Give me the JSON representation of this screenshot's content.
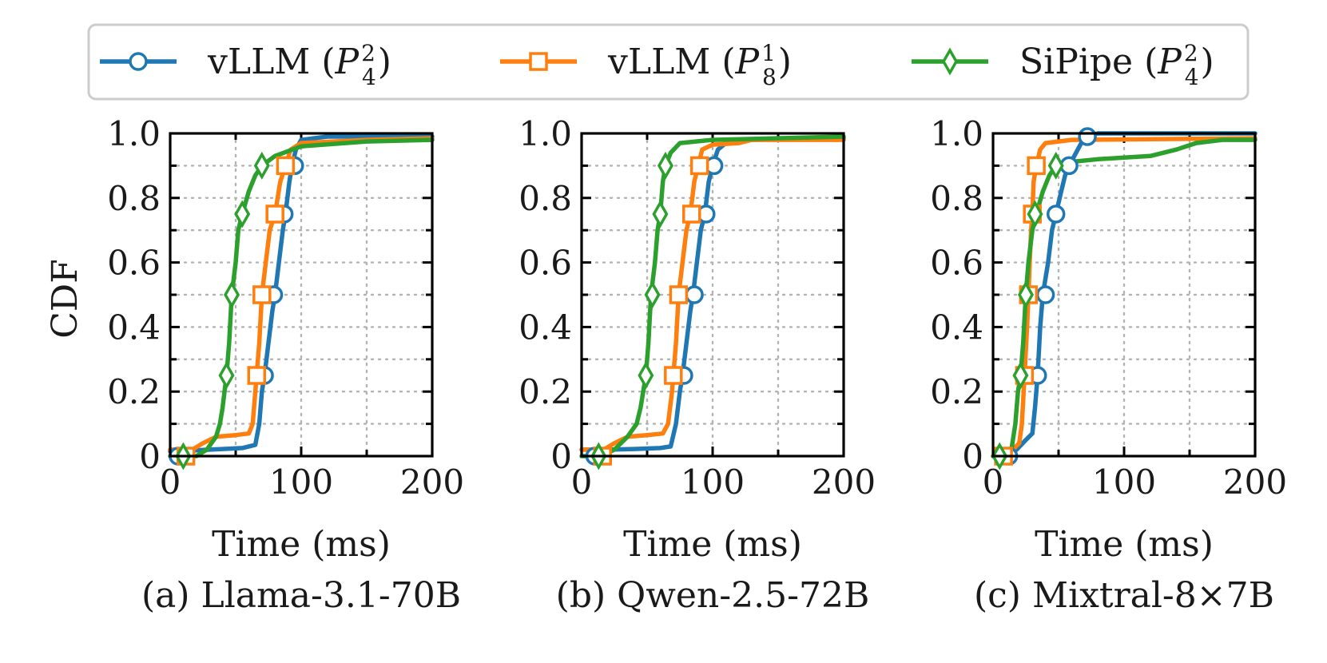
{
  "chart_data": {
    "type": "line",
    "ylabel": "CDF",
    "legend": {
      "position": "top",
      "entries": [
        {
          "name": "vLLM",
          "config": "P",
          "sub": "4",
          "sup": "2",
          "color": "#1f77b4",
          "marker": "circle"
        },
        {
          "name": "vLLM",
          "config": "P",
          "sub": "8",
          "sup": "1",
          "color": "#ff7f0e",
          "marker": "square"
        },
        {
          "name": "SiPipe",
          "config": "P",
          "sub": "4",
          "sup": "2",
          "color": "#2ca02c",
          "marker": "diamond"
        }
      ]
    },
    "xlim": [
      0,
      200
    ],
    "ylim": [
      0,
      1.0
    ],
    "xticks": [
      "0",
      "100",
      "200"
    ],
    "yticks": [
      "0",
      "0.2",
      "0.4",
      "0.6",
      "0.8",
      "1.0"
    ],
    "grid": true,
    "marker_levels": [
      0,
      0.25,
      0.5,
      0.75,
      0.9
    ],
    "panels": [
      {
        "caption": "(a) Llama-3.1-70B",
        "xlabel": "Time (ms)",
        "series": [
          {
            "name": "vLLM (P_4^2)",
            "color": "#1f77b4",
            "points": [
              [
                0,
                0.015
              ],
              [
                10,
                0.016
              ],
              [
                20,
                0.018
              ],
              [
                30,
                0.02
              ],
              [
                40,
                0.022
              ],
              [
                55,
                0.025
              ],
              [
                65,
                0.035
              ],
              [
                68,
                0.1
              ],
              [
                70,
                0.2
              ],
              [
                72,
                0.25
              ],
              [
                75,
                0.35
              ],
              [
                78,
                0.45
              ],
              [
                80,
                0.5
              ],
              [
                83,
                0.6
              ],
              [
                86,
                0.7
              ],
              [
                88,
                0.75
              ],
              [
                91,
                0.85
              ],
              [
                93,
                0.9
              ],
              [
                96,
                0.95
              ],
              [
                100,
                0.98
              ],
              [
                120,
                0.99
              ],
              [
                200,
                0.99
              ]
            ],
            "markers": [
              [
                6,
                0.0
              ],
              [
                72,
                0.25
              ],
              [
                79,
                0.5
              ],
              [
                87,
                0.75
              ],
              [
                95,
                0.9
              ]
            ]
          },
          {
            "name": "vLLM (P_8^1)",
            "color": "#ff7f0e",
            "points": [
              [
                0,
                0.02
              ],
              [
                10,
                0.02
              ],
              [
                15,
                0.015
              ],
              [
                25,
                0.04
              ],
              [
                35,
                0.06
              ],
              [
                50,
                0.065
              ],
              [
                60,
                0.07
              ],
              [
                63,
                0.1
              ],
              [
                65,
                0.2
              ],
              [
                66,
                0.25
              ],
              [
                68,
                0.35
              ],
              [
                70,
                0.5
              ],
              [
                73,
                0.6
              ],
              [
                76,
                0.7
              ],
              [
                80,
                0.75
              ],
              [
                84,
                0.85
              ],
              [
                88,
                0.9
              ],
              [
                92,
                0.95
              ],
              [
                100,
                0.97
              ],
              [
                150,
                0.98
              ],
              [
                200,
                0.985
              ]
            ],
            "markers": [
              [
                12,
                0.0
              ],
              [
                66,
                0.25
              ],
              [
                70,
                0.5
              ],
              [
                80,
                0.75
              ],
              [
                88,
                0.9
              ]
            ]
          },
          {
            "name": "SiPipe (P_4^2)",
            "color": "#2ca02c",
            "points": [
              [
                0,
                0.0
              ],
              [
                20,
                0.0
              ],
              [
                28,
                0.02
              ],
              [
                35,
                0.06
              ],
              [
                38,
                0.1
              ],
              [
                40,
                0.15
              ],
              [
                43,
                0.25
              ],
              [
                45,
                0.35
              ],
              [
                47,
                0.5
              ],
              [
                50,
                0.6
              ],
              [
                52,
                0.7
              ],
              [
                55,
                0.75
              ],
              [
                60,
                0.82
              ],
              [
                65,
                0.87
              ],
              [
                70,
                0.9
              ],
              [
                80,
                0.93
              ],
              [
                100,
                0.96
              ],
              [
                150,
                0.975
              ],
              [
                200,
                0.98
              ]
            ],
            "markers": [
              [
                10,
                0.0
              ],
              [
                43,
                0.25
              ],
              [
                47,
                0.5
              ],
              [
                55,
                0.75
              ],
              [
                70,
                0.9
              ]
            ]
          }
        ]
      },
      {
        "caption": "(b) Qwen-2.5-72B",
        "xlabel": "Time (ms)",
        "series": [
          {
            "name": "vLLM (P_4^2)",
            "color": "#1f77b4",
            "points": [
              [
                0,
                0.02
              ],
              [
                20,
                0.02
              ],
              [
                40,
                0.022
              ],
              [
                60,
                0.025
              ],
              [
                68,
                0.03
              ],
              [
                72,
                0.1
              ],
              [
                75,
                0.2
              ],
              [
                77,
                0.25
              ],
              [
                80,
                0.35
              ],
              [
                83,
                0.45
              ],
              [
                85,
                0.5
              ],
              [
                88,
                0.6
              ],
              [
                91,
                0.7
              ],
              [
                94,
                0.75
              ],
              [
                97,
                0.85
              ],
              [
                100,
                0.9
              ],
              [
                104,
                0.95
              ],
              [
                110,
                0.97
              ],
              [
                125,
                0.98
              ],
              [
                200,
                0.985
              ]
            ],
            "markers": [
              [
                10,
                0.0
              ],
              [
                78,
                0.25
              ],
              [
                86,
                0.5
              ],
              [
                95,
                0.75
              ],
              [
                101,
                0.9
              ]
            ]
          },
          {
            "name": "vLLM (P_8^1)",
            "color": "#ff7f0e",
            "points": [
              [
                0,
                0.02
              ],
              [
                10,
                0.02
              ],
              [
                15,
                0.015
              ],
              [
                25,
                0.04
              ],
              [
                35,
                0.06
              ],
              [
                50,
                0.065
              ],
              [
                62,
                0.07
              ],
              [
                66,
                0.1
              ],
              [
                69,
                0.2
              ],
              [
                70,
                0.25
              ],
              [
                72,
                0.35
              ],
              [
                74,
                0.5
              ],
              [
                77,
                0.6
              ],
              [
                80,
                0.7
              ],
              [
                83,
                0.75
              ],
              [
                86,
                0.85
              ],
              [
                89,
                0.9
              ],
              [
                92,
                0.95
              ],
              [
                100,
                0.965
              ],
              [
                120,
                0.97
              ],
              [
                130,
                0.98
              ],
              [
                200,
                0.98
              ]
            ],
            "markers": [
              [
                16,
                0.0
              ],
              [
                70,
                0.25
              ],
              [
                74,
                0.5
              ],
              [
                84,
                0.75
              ],
              [
                90,
                0.9
              ]
            ]
          },
          {
            "name": "SiPipe (P_4^2)",
            "color": "#2ca02c",
            "points": [
              [
                0,
                0.0
              ],
              [
                15,
                0.0
              ],
              [
                25,
                0.02
              ],
              [
                35,
                0.06
              ],
              [
                42,
                0.1
              ],
              [
                45,
                0.15
              ],
              [
                49,
                0.25
              ],
              [
                51,
                0.35
              ],
              [
                53,
                0.5
              ],
              [
                56,
                0.6
              ],
              [
                58,
                0.7
              ],
              [
                60,
                0.75
              ],
              [
                62,
                0.85
              ],
              [
                64,
                0.9
              ],
              [
                68,
                0.94
              ],
              [
                75,
                0.97
              ],
              [
                100,
                0.98
              ],
              [
                200,
                0.99
              ]
            ],
            "markers": [
              [
                13,
                0.0
              ],
              [
                49,
                0.25
              ],
              [
                54,
                0.5
              ],
              [
                60,
                0.75
              ],
              [
                64,
                0.9
              ]
            ]
          }
        ]
      },
      {
        "caption": "(c) Mixtral-8×7B",
        "xlabel": "Time (ms)",
        "series": [
          {
            "name": "vLLM (P_4^2)",
            "color": "#1f77b4",
            "points": [
              [
                0,
                0.0
              ],
              [
                10,
                0.0
              ],
              [
                18,
                0.02
              ],
              [
                25,
                0.05
              ],
              [
                30,
                0.07
              ],
              [
                32,
                0.15
              ],
              [
                34,
                0.25
              ],
              [
                36,
                0.4
              ],
              [
                38,
                0.5
              ],
              [
                42,
                0.6
              ],
              [
                45,
                0.7
              ],
              [
                48,
                0.75
              ],
              [
                52,
                0.82
              ],
              [
                55,
                0.87
              ],
              [
                58,
                0.9
              ],
              [
                62,
                0.93
              ],
              [
                66,
                0.96
              ],
              [
                70,
                0.99
              ],
              [
                80,
                1.0
              ],
              [
                200,
                1.0
              ]
            ],
            "markers": [
              [
                12,
                0.0
              ],
              [
                34,
                0.25
              ],
              [
                40,
                0.5
              ],
              [
                48,
                0.75
              ],
              [
                58,
                0.9
              ],
              [
                72,
                0.99
              ]
            ]
          },
          {
            "name": "vLLM (P_8^1)",
            "color": "#ff7f0e",
            "points": [
              [
                0,
                0.0
              ],
              [
                8,
                0.0
              ],
              [
                15,
                0.02
              ],
              [
                20,
                0.04
              ],
              [
                22,
                0.1
              ],
              [
                24,
                0.25
              ],
              [
                26,
                0.4
              ],
              [
                27,
                0.5
              ],
              [
                28,
                0.6
              ],
              [
                29,
                0.7
              ],
              [
                30,
                0.75
              ],
              [
                31,
                0.85
              ],
              [
                33,
                0.9
              ],
              [
                36,
                0.95
              ],
              [
                40,
                0.97
              ],
              [
                60,
                0.98
              ],
              [
                200,
                0.985
              ]
            ],
            "markers": [
              [
                8,
                0.0
              ],
              [
                24,
                0.25
              ],
              [
                27,
                0.5
              ],
              [
                30,
                0.75
              ],
              [
                33,
                0.9
              ]
            ]
          },
          {
            "name": "SiPipe (P_4^2)",
            "color": "#2ca02c",
            "points": [
              [
                0,
                0.0
              ],
              [
                10,
                0.0
              ],
              [
                14,
                0.02
              ],
              [
                17,
                0.1
              ],
              [
                19,
                0.2
              ],
              [
                21,
                0.25
              ],
              [
                23,
                0.35
              ],
              [
                25,
                0.5
              ],
              [
                27,
                0.6
              ],
              [
                30,
                0.7
              ],
              [
                33,
                0.75
              ],
              [
                38,
                0.82
              ],
              [
                43,
                0.87
              ],
              [
                48,
                0.9
              ],
              [
                55,
                0.91
              ],
              [
                80,
                0.92
              ],
              [
                120,
                0.93
              ],
              [
                140,
                0.95
              ],
              [
                155,
                0.97
              ],
              [
                175,
                0.98
              ],
              [
                200,
                0.98
              ]
            ],
            "markers": [
              [
                5,
                0.0
              ],
              [
                21,
                0.25
              ],
              [
                25,
                0.5
              ],
              [
                32,
                0.75
              ],
              [
                48,
                0.9
              ]
            ]
          }
        ]
      }
    ]
  }
}
